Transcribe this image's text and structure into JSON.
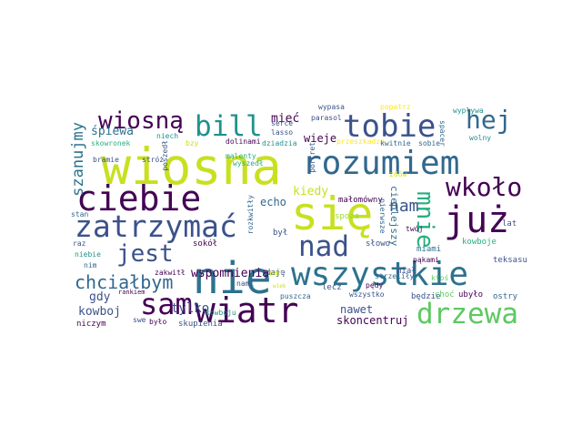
{
  "palette": {
    "dark_purple": "#440154",
    "indigo": "#3b528b",
    "blue": "#31688e",
    "teal_blue": "#2c728e",
    "teal": "#21918c",
    "sea_green": "#28ae80",
    "green": "#5ec962",
    "lime": "#a0da39",
    "yellow_green": "#c8e020",
    "yellow": "#fde725"
  },
  "words": [
    {
      "id": "wiosna",
      "text": "wiosna",
      "color": "#c8e020"
    },
    {
      "id": "sie",
      "text": "się",
      "color": "#c8e020"
    },
    {
      "id": "nie",
      "text": "nie",
      "color": "#2c728e"
    },
    {
      "id": "wszystkie",
      "text": "wszystkie",
      "color": "#2c728e"
    },
    {
      "id": "rozumiem",
      "text": "rozumiem",
      "color": "#31688e"
    },
    {
      "id": "ciebie",
      "text": "ciebie",
      "color": "#440154"
    },
    {
      "id": "tobie",
      "text": "tobie",
      "color": "#3b528b"
    },
    {
      "id": "zatrzymac",
      "text": "zatrzymać",
      "color": "#3b528b"
    },
    {
      "id": "juz",
      "text": "już",
      "color": "#440154"
    },
    {
      "id": "wiatr",
      "text": "wiatr",
      "color": "#440154"
    },
    {
      "id": "drzewa",
      "text": "drzewa",
      "color": "#5ec962"
    },
    {
      "id": "nad",
      "text": "nad",
      "color": "#3b528b"
    },
    {
      "id": "bill",
      "text": "bill",
      "color": "#21918c"
    },
    {
      "id": "wiosna2",
      "text": "wiosną",
      "color": "#440154"
    },
    {
      "id": "wkolo",
      "text": "wkoło",
      "color": "#440154"
    },
    {
      "id": "hej",
      "text": "hej",
      "color": "#31688e"
    },
    {
      "id": "sam",
      "text": "sam",
      "color": "#440154"
    },
    {
      "id": "jest",
      "text": "jest",
      "color": "#3b528b"
    },
    {
      "id": "chcialbym",
      "text": "chciałbym",
      "color": "#31688e"
    },
    {
      "id": "mnie",
      "text": "mnie",
      "color": "#28ae80"
    },
    {
      "id": "szanujmy",
      "text": "szanujmy",
      "color": "#2c728e"
    },
    {
      "id": "nam",
      "text": "nam",
      "color": "#3b528b"
    },
    {
      "id": "wspomnienia",
      "text": "wspomnienia",
      "color": "#440154"
    },
    {
      "id": "kiedy",
      "text": "kiedy",
      "color": "#c8e020"
    },
    {
      "id": "miec",
      "text": "mieć",
      "color": "#440154"
    },
    {
      "id": "spiewa",
      "text": "śpiewa",
      "color": "#2c728e"
    },
    {
      "id": "wieje",
      "text": "wieje",
      "color": "#440154"
    },
    {
      "id": "echo",
      "text": "echo",
      "color": "#31688e"
    },
    {
      "id": "tylko",
      "text": "tylko",
      "color": "#3b528b"
    },
    {
      "id": "kowboj",
      "text": "kowboj",
      "color": "#3b528b"
    },
    {
      "id": "gdy",
      "text": "gdy",
      "color": "#3b528b"
    },
    {
      "id": "nawet",
      "text": "nawet",
      "color": "#3b528b"
    },
    {
      "id": "skoncentruj",
      "text": "skoncentruj",
      "color": "#440154"
    },
    {
      "id": "ciepiejszy",
      "text": "cieplejszy",
      "color": "#2c728e"
    },
    {
      "id": "niczym",
      "text": "niczym",
      "color": "#440154"
    },
    {
      "id": "skupienia",
      "text": "skupienia",
      "color": "#3b528b"
    },
    {
      "id": "sokol",
      "text": "sokół",
      "color": "#440154"
    },
    {
      "id": "daje",
      "text": "daję",
      "color": "#3b528b"
    },
    {
      "id": "lecz",
      "text": "lecz",
      "color": "#3b528b"
    },
    {
      "id": "slowo",
      "text": "słowo",
      "color": "#3b528b"
    },
    {
      "id": "miami",
      "text": "miami",
      "color": "#2c728e"
    },
    {
      "id": "kowboje",
      "text": "kowboje",
      "color": "#28ae80"
    },
    {
      "id": "teksasu",
      "text": "teksasu",
      "color": "#3b528b"
    },
    {
      "id": "mial",
      "text": "miał",
      "color": "#3b528b"
    },
    {
      "id": "bedzie",
      "text": "będzie",
      "color": "#3b528b"
    },
    {
      "id": "choc",
      "text": "choć",
      "color": "#5ec962"
    },
    {
      "id": "ubylo",
      "text": "ubyło",
      "color": "#440154"
    },
    {
      "id": "ostry",
      "text": "ostry",
      "color": "#31688e"
    },
    {
      "id": "malomowny",
      "text": "małomówny",
      "color": "#440154"
    },
    {
      "id": "spoza",
      "text": "spoza",
      "color": "#a0da39"
    },
    {
      "id": "lat",
      "text": "lat",
      "color": "#3b528b"
    },
    {
      "id": "byl",
      "text": "był",
      "color": "#3b528b"
    },
    {
      "id": "lasso",
      "text": "lasso",
      "color": "#3b528b"
    },
    {
      "id": "serce",
      "text": "serce",
      "color": "#3b528b"
    },
    {
      "id": "parasol",
      "text": "parasol",
      "color": "#3b528b"
    },
    {
      "id": "dolinami",
      "text": "dolinami",
      "color": "#440154"
    },
    {
      "id": "wypasa",
      "text": "wypasa",
      "color": "#3b528b"
    },
    {
      "id": "popatrz",
      "text": "popatrz",
      "color": "#fde725"
    },
    {
      "id": "wyplywa",
      "text": "wypływa",
      "color": "#21918c"
    },
    {
      "id": "wolny",
      "text": "wolny",
      "color": "#21918c"
    },
    {
      "id": "skowronek",
      "text": "skowronek",
      "color": "#28ae80"
    },
    {
      "id": "niech",
      "text": "niech",
      "color": "#21918c"
    },
    {
      "id": "bzy",
      "text": "bzy",
      "color": "#c8e020"
    },
    {
      "id": "dziadzia",
      "text": "dziadzia",
      "color": "#21918c"
    },
    {
      "id": "przeszkadza",
      "text": "przeszkadza",
      "color": "#fde725"
    },
    {
      "id": "kwitnie",
      "text": "kwitnie",
      "color": "#31688e"
    },
    {
      "id": "sobie",
      "text": "sobie",
      "color": "#31688e"
    },
    {
      "id": "spacer",
      "text": "spacer",
      "color": "#31688e"
    },
    {
      "id": "portret",
      "text": "portret",
      "color": "#3b528b"
    },
    {
      "id": "wyszedl",
      "text": "wyszedł",
      "color": "#28ae80"
    },
    {
      "id": "malenty",
      "text": "malenty",
      "color": "#28ae80"
    },
    {
      "id": "bramie",
      "text": "bramie",
      "color": "#3b528b"
    },
    {
      "id": "stroz",
      "text": "stróż",
      "color": "#3b528b"
    },
    {
      "id": "poszedl",
      "text": "poszedł",
      "color": "#3b528b"
    },
    {
      "id": "stan",
      "text": "stan",
      "color": "#31688e"
    },
    {
      "id": "raz",
      "text": "raz",
      "color": "#3b528b"
    },
    {
      "id": "niebie",
      "text": "niebie",
      "color": "#21918c"
    },
    {
      "id": "nim",
      "text": "nim",
      "color": "#31688e"
    },
    {
      "id": "rankiem",
      "text": "rankiem",
      "color": "#440154"
    },
    {
      "id": "zakwitl",
      "text": "zakwitł",
      "color": "#440154"
    },
    {
      "id": "swe",
      "text": "swe",
      "color": "#3b528b"
    },
    {
      "id": "bylo",
      "text": "było",
      "color": "#440154"
    },
    {
      "id": "kowboju",
      "text": "kowboju",
      "color": "#21918c"
    },
    {
      "id": "nami",
      "text": "nami",
      "color": "#3b528b"
    },
    {
      "id": "pan",
      "text": "pan",
      "color": "#c8e020"
    },
    {
      "id": "puszcza",
      "text": "puszcza",
      "color": "#31688e"
    },
    {
      "id": "pedy",
      "text": "pędy",
      "color": "#440154"
    },
    {
      "id": "wszystko",
      "text": "wszystko",
      "color": "#3b528b"
    },
    {
      "id": "strzelily",
      "text": "strzeliły",
      "color": "#31688e"
    },
    {
      "id": "pakami",
      "text": "pąkami",
      "color": "#440154"
    },
    {
      "id": "ktos",
      "text": "ktoś",
      "color": "#5ec962"
    },
    {
      "id": "twoj",
      "text": "twój",
      "color": "#440154"
    },
    {
      "id": "pierwsze",
      "text": "pierwsze",
      "color": "#31688e"
    },
    {
      "id": "zdow",
      "text": "zdów",
      "color": "#c8e020"
    },
    {
      "id": "rozkwitly",
      "text": "rozkwitły",
      "color": "#31688e"
    },
    {
      "id": "tylko_small",
      "text": "tylk",
      "color": "#c8e020"
    },
    {
      "id": "wiek",
      "text": "wiek",
      "color": "#c8e020"
    },
    {
      "id": "ktor",
      "text": "ktoś",
      "color": "#c8e020"
    },
    {
      "id": "tob",
      "text": "tob",
      "color": "#3b528b"
    },
    {
      "id": "umie",
      "text": "umie",
      "color": "#3b528b"
    }
  ]
}
